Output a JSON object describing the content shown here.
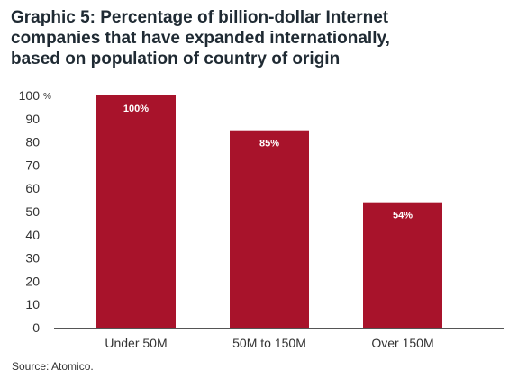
{
  "title_lines": [
    "Graphic 5: Percentage of billion-dollar Internet",
    "companies that have expanded internationally,",
    "based on population of country of origin"
  ],
  "source": "Source: Atomico.",
  "colors": {
    "bar": "#a8132b",
    "title": "#1f2a33",
    "axis": "#555555"
  },
  "chart_data": {
    "type": "bar",
    "title": "Graphic 5: Percentage of billion-dollar Internet companies that have expanded internationally, based on population of country of origin",
    "categories": [
      "Under 50M",
      "50M to 150M",
      "Over 150M"
    ],
    "values": [
      100,
      85,
      54
    ],
    "data_labels": [
      "100%",
      "85%",
      "54%"
    ],
    "y_unit": "%",
    "yticks": [
      0,
      10,
      20,
      30,
      40,
      50,
      60,
      70,
      80,
      90,
      100
    ],
    "ylim": [
      0,
      100
    ],
    "grid": false,
    "legend": "none"
  }
}
